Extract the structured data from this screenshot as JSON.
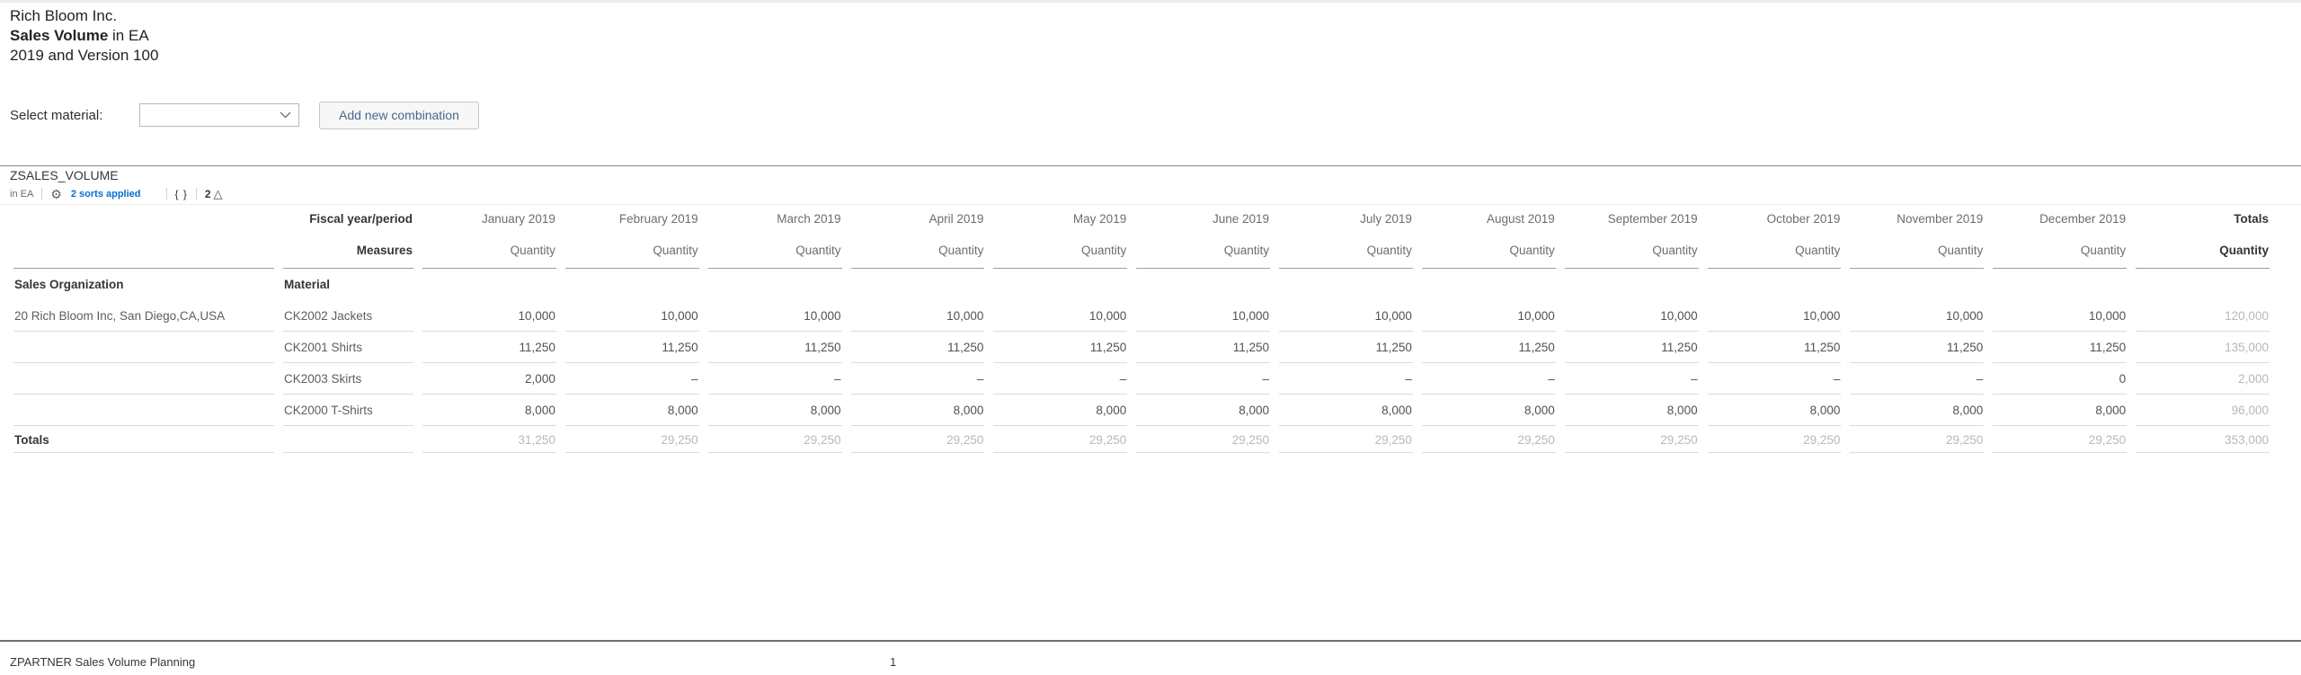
{
  "page": {
    "title_line1": "Rich Bloom Inc.",
    "title_line2_bold": "Sales Volume",
    "title_line2_rest": " in EA",
    "title_line3": "2019 and Version 100"
  },
  "filter": {
    "label": "Select material:",
    "dropdown_value": "",
    "button_label": "Add new combination"
  },
  "widget": {
    "title": "ZSALES_VOLUME",
    "unit": "in EA",
    "gear_icon": "gear",
    "sorts_link": "2 sorts applied",
    "braces_icon": "{ }",
    "warning_count": "2",
    "warning_icon": "warning-triangle"
  },
  "table": {
    "corner_row1": "Fiscal year/period",
    "corner_row2": "Measures",
    "dim_header_org": "Sales Organization",
    "dim_header_mat": "Material",
    "measure_label": "Quantity",
    "totals_col_label": "Totals",
    "columns": [
      "January 2019",
      "February 2019",
      "March 2019",
      "April 2019",
      "May 2019",
      "June 2019",
      "July 2019",
      "August 2019",
      "September 2019",
      "October 2019",
      "November 2019",
      "December 2019"
    ],
    "org": "20 Rich Bloom Inc, San Diego,CA,USA",
    "rows": [
      {
        "material": "CK2002 Jackets",
        "values": [
          "10,000",
          "10,000",
          "10,000",
          "10,000",
          "10,000",
          "10,000",
          "10,000",
          "10,000",
          "10,000",
          "10,000",
          "10,000",
          "10,000"
        ],
        "total": "120,000"
      },
      {
        "material": "CK2001 Shirts",
        "values": [
          "11,250",
          "11,250",
          "11,250",
          "11,250",
          "11,250",
          "11,250",
          "11,250",
          "11,250",
          "11,250",
          "11,250",
          "11,250",
          "11,250"
        ],
        "total": "135,000"
      },
      {
        "material": "CK2003 Skirts",
        "values": [
          "2,000",
          "–",
          "–",
          "–",
          "–",
          "–",
          "–",
          "–",
          "–",
          "–",
          "–",
          "0"
        ],
        "total": "2,000"
      },
      {
        "material": "CK2000 T-Shirts",
        "values": [
          "8,000",
          "8,000",
          "8,000",
          "8,000",
          "8,000",
          "8,000",
          "8,000",
          "8,000",
          "8,000",
          "8,000",
          "8,000",
          "8,000"
        ],
        "total": "96,000"
      }
    ],
    "totals_row": {
      "label": "Totals",
      "values": [
        "31,250",
        "29,250",
        "29,250",
        "29,250",
        "29,250",
        "29,250",
        "29,250",
        "29,250",
        "29,250",
        "29,250",
        "29,250",
        "29,250"
      ],
      "total": "353,000"
    }
  },
  "footer": {
    "left_text": "ZPARTNER Sales Volume Planning",
    "page_number": "1"
  },
  "colors": {
    "link_blue": "#0a6ed1",
    "header_text": "#32363a",
    "muted_total": "#b4b9be",
    "row_line": "#d9dbde",
    "header_line": "#9b9ea1"
  }
}
